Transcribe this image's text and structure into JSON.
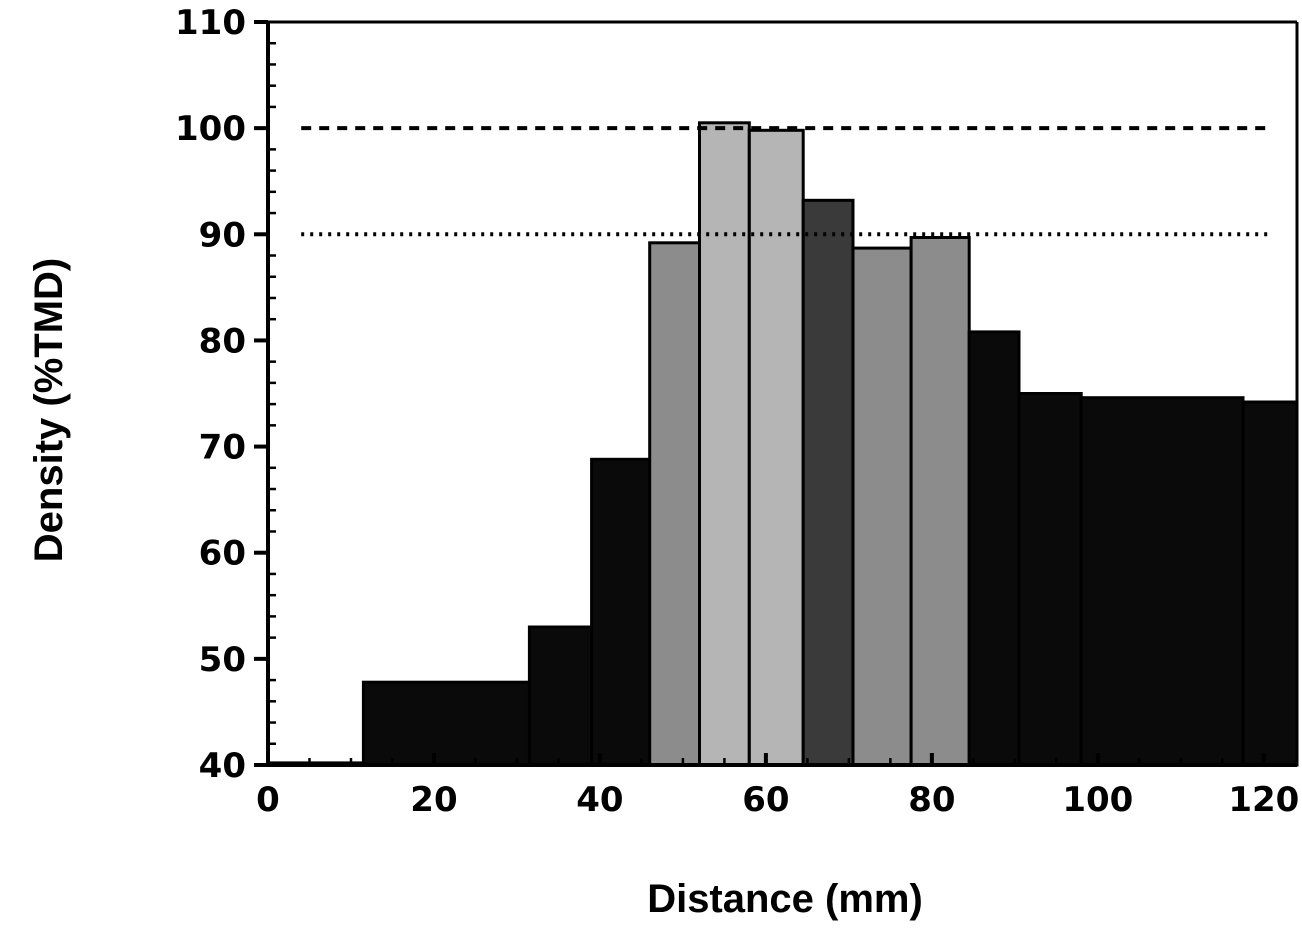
{
  "chart_data": {
    "type": "bar",
    "title": "",
    "xlabel": "Distance (mm)",
    "ylabel": "Density (%TMD)",
    "xlim": [
      0,
      124
    ],
    "ylim": [
      40,
      110
    ],
    "x_ticks": [
      "0",
      "20",
      "40",
      "60",
      "80",
      "100",
      "120"
    ],
    "y_ticks": [
      "40",
      "50",
      "60",
      "70",
      "80",
      "90",
      "100",
      "110"
    ],
    "grid": false,
    "reference_lines": [
      {
        "y": 100,
        "style": "dashed"
      },
      {
        "y": 90,
        "style": "dotted"
      }
    ],
    "series": [
      {
        "bins": [
          {
            "x0": 0,
            "x1": 11.5,
            "value": 40.2
          },
          {
            "x0": 11.5,
            "x1": 31.5,
            "value": 47.8
          },
          {
            "x0": 31.5,
            "x1": 39,
            "value": 53
          },
          {
            "x0": 39,
            "x1": 46,
            "value": 68.8
          },
          {
            "x0": 46,
            "x1": 52,
            "value": 89.2
          },
          {
            "x0": 52,
            "x1": 58,
            "value": 100.5
          },
          {
            "x0": 58,
            "x1": 64.5,
            "value": 99.8
          },
          {
            "x0": 64.5,
            "x1": 70.5,
            "value": 93.2
          },
          {
            "x0": 70.5,
            "x1": 77.5,
            "value": 88.7
          },
          {
            "x0": 77.5,
            "x1": 84.5,
            "value": 89.7
          },
          {
            "x0": 84.5,
            "x1": 90.5,
            "value": 80.8
          },
          {
            "x0": 90.5,
            "x1": 98,
            "value": 75
          },
          {
            "x0": 98,
            "x1": 117.5,
            "value": 74.6
          },
          {
            "x0": 117.5,
            "x1": 124,
            "value": 74.2
          }
        ]
      }
    ],
    "colors": {
      "bar_dark": "#0a0a0a",
      "bar_mid": "#3a3a3a",
      "bar_light": "#8c8c8c",
      "bar_lighter": "#b5b5b5",
      "axis": "#000000"
    }
  }
}
